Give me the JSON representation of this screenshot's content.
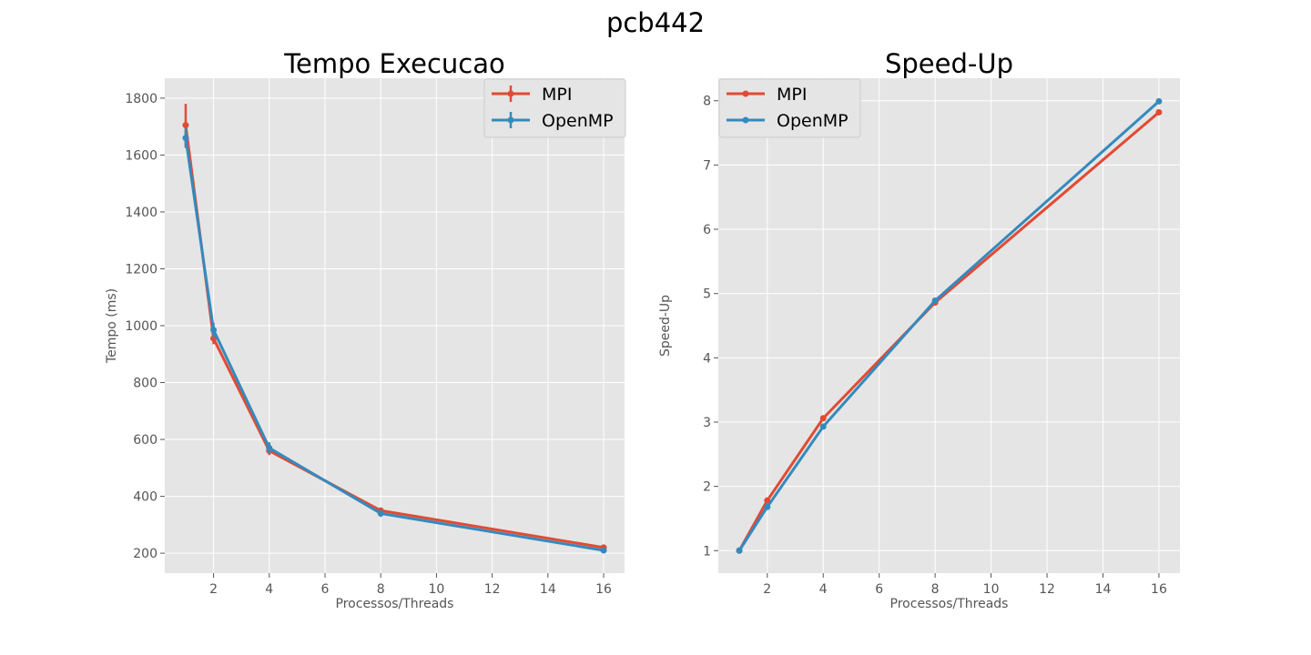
{
  "figure": {
    "suptitle": "pcb442"
  },
  "colors": {
    "mpi": "#E24A33",
    "openmp": "#348ABD",
    "background": "#E5E5E5",
    "grid": "#FFFFFF",
    "tick": "#555555"
  },
  "chart_data": [
    {
      "type": "line",
      "title": "Tempo Execucao",
      "xlabel": "Processos/Threads",
      "ylabel": "Tempo (ms)",
      "xlim": [
        0.25,
        16.75
      ],
      "ylim": [
        130,
        1870
      ],
      "xticks": [
        2,
        4,
        6,
        8,
        10,
        12,
        14,
        16
      ],
      "yticks": [
        200,
        400,
        600,
        800,
        1000,
        1200,
        1400,
        1600,
        1800
      ],
      "grid": true,
      "legend_position": "upper right",
      "error_bars": true,
      "x": [
        1,
        2,
        4,
        8,
        16
      ],
      "series": [
        {
          "name": "MPI",
          "values": [
            1705,
            955,
            560,
            350,
            220
          ],
          "errors": [
            75,
            20,
            15,
            8,
            10
          ]
        },
        {
          "name": "OpenMP",
          "values": [
            1660,
            985,
            570,
            340,
            210
          ],
          "errors": [
            35,
            25,
            20,
            12,
            8
          ]
        }
      ]
    },
    {
      "type": "line",
      "title": "Speed-Up",
      "xlabel": "Processos/Threads",
      "ylabel": "Speed-Up",
      "xlim": [
        0.25,
        16.75
      ],
      "ylim": [
        0.65,
        8.35
      ],
      "xticks": [
        2,
        4,
        6,
        8,
        10,
        12,
        14,
        16
      ],
      "yticks": [
        1,
        2,
        3,
        4,
        5,
        6,
        7,
        8
      ],
      "grid": true,
      "legend_position": "upper left",
      "error_bars": false,
      "x": [
        1,
        2,
        4,
        8,
        16
      ],
      "series": [
        {
          "name": "MPI",
          "values": [
            1.0,
            1.78,
            3.06,
            4.86,
            7.82
          ]
        },
        {
          "name": "OpenMP",
          "values": [
            1.0,
            1.68,
            2.93,
            4.89,
            7.99
          ]
        }
      ]
    }
  ]
}
